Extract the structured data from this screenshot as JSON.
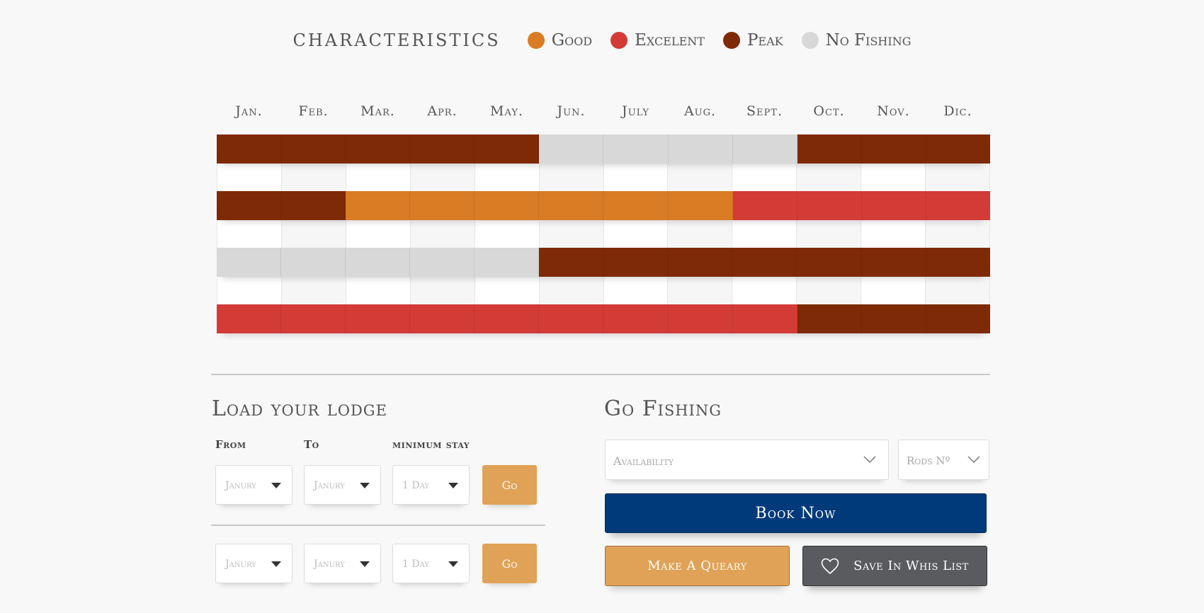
{
  "legend": {
    "title": "Characteristics",
    "items": [
      {
        "label": "Good",
        "color": "#d97c24"
      },
      {
        "label": "Excelent",
        "color": "#d33b37"
      },
      {
        "label": "Peak",
        "color": "#7f2a06"
      },
      {
        "label": "No Fishing",
        "color": "#d8d8d8"
      }
    ]
  },
  "months": [
    "Jan.",
    "Feb.",
    "Mar.",
    "Apr.",
    "May.",
    "Jun.",
    "July",
    "Aug.",
    "Sept.",
    "Oct.",
    "Nov.",
    "Dic."
  ],
  "calendar": {
    "status_colors": {
      "good": "#d97c24",
      "excellent": "#d33b37",
      "peak": "#7f2a06",
      "none": "#d8d8d8"
    },
    "rows": [
      [
        "peak",
        "peak",
        "peak",
        "peak",
        "peak",
        "none",
        "none",
        "none",
        "none",
        "peak",
        "peak",
        "peak"
      ],
      [
        "peak",
        "peak",
        "good",
        "good",
        "good",
        "good",
        "good",
        "good",
        "excellent",
        "excellent",
        "excellent",
        "excellent"
      ],
      [
        "none",
        "none",
        "none",
        "none",
        "none",
        "peak",
        "peak",
        "peak",
        "peak",
        "peak",
        "peak",
        "peak"
      ],
      [
        "excellent",
        "excellent",
        "excellent",
        "excellent",
        "excellent",
        "excellent",
        "excellent",
        "excellent",
        "excellent",
        "peak",
        "peak",
        "peak"
      ]
    ]
  },
  "lodge": {
    "title": "Load your lodge",
    "labels": {
      "from": "From",
      "to": "To",
      "min_stay": "minimum stay"
    },
    "rows": [
      {
        "from": "Janury",
        "to": "Janury",
        "stay": "1 Day",
        "go": "Go"
      },
      {
        "from": "Janury",
        "to": "Janury",
        "stay": "1 Day",
        "go": "Go"
      }
    ]
  },
  "fishing": {
    "title": "Go Fishing",
    "availability_placeholder": "Availability",
    "rods_placeholder": "Rods Nº",
    "book_now": "Book Now",
    "make_query": "Make A Queary",
    "save_wishlist": "Save In Whis List"
  }
}
